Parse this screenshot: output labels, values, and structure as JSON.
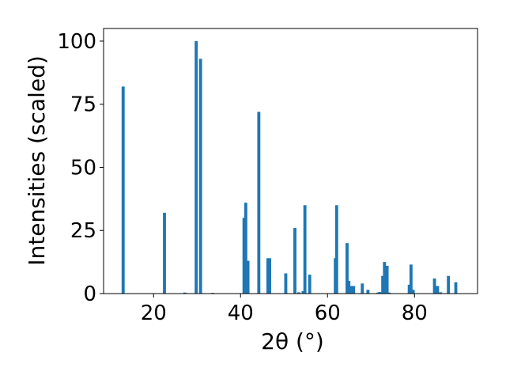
{
  "chart_data": {
    "type": "bar",
    "title": "",
    "xlabel": "2θ (°)",
    "ylabel": "Intensities (scaled)",
    "xlim": [
      8.5,
      94.5
    ],
    "ylim": [
      0,
      105
    ],
    "xticks": [
      20,
      40,
      60,
      80
    ],
    "yticks": [
      0,
      25,
      50,
      75,
      100
    ],
    "grid": false,
    "bar_width_deg": 0.7,
    "series": [
      {
        "color": "#1f77b4",
        "x": [
          13.0,
          22.5,
          27.2,
          29.8,
          30.8,
          33.6,
          40.8,
          41.2,
          41.7,
          44.2,
          46.3,
          46.7,
          50.4,
          52.5,
          53.4,
          54.4,
          54.8,
          55.9,
          61.8,
          62.1,
          64.5,
          64.9,
          65.5,
          66.0,
          68.0,
          69.3,
          71.6,
          72.0,
          72.7,
          73.1,
          73.7,
          74.2,
          78.8,
          79.2,
          79.7,
          84.6,
          85.3,
          86.0,
          87.8,
          89.5
        ],
        "values": [
          82,
          32,
          0.4,
          100,
          93,
          0.3,
          30,
          36,
          13,
          72,
          14,
          14,
          8,
          26,
          0.5,
          1,
          35,
          7.5,
          14,
          35,
          20,
          5,
          3,
          3,
          4,
          1.5,
          0.4,
          0.6,
          7,
          12.5,
          11,
          0.4,
          3.5,
          11.5,
          1.5,
          6,
          3,
          0.5,
          7,
          4.5
        ]
      }
    ]
  }
}
